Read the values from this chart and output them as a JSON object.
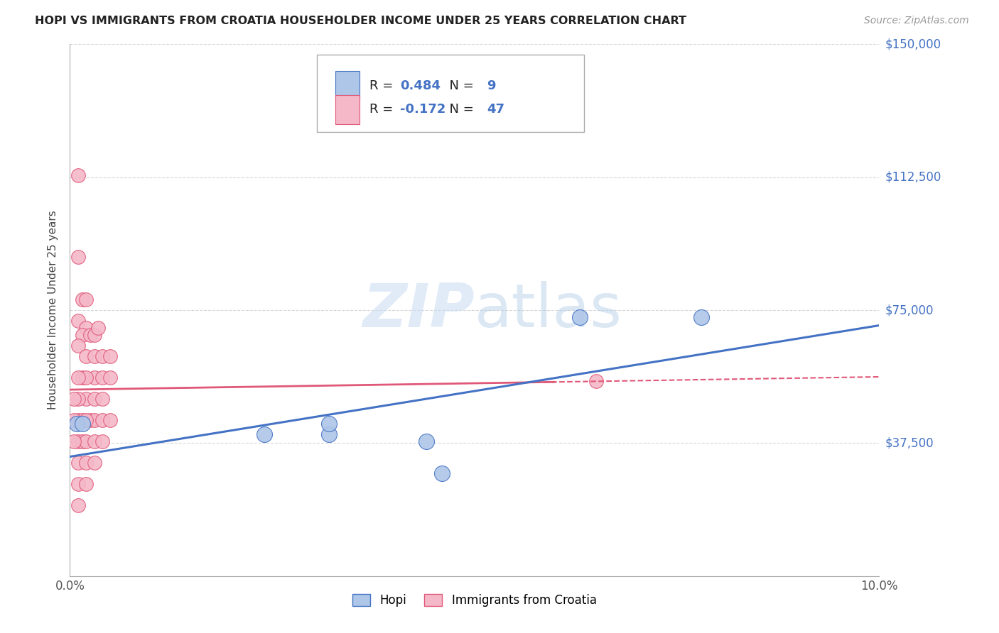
{
  "title": "HOPI VS IMMIGRANTS FROM CROATIA HOUSEHOLDER INCOME UNDER 25 YEARS CORRELATION CHART",
  "source": "Source: ZipAtlas.com",
  "ylabel": "Householder Income Under 25 years",
  "x_min": 0.0,
  "x_max": 0.1,
  "y_min": 0,
  "y_max": 150000,
  "y_ticks": [
    0,
    37500,
    75000,
    112500,
    150000
  ],
  "y_tick_labels": [
    "",
    "$37,500",
    "$75,000",
    "$112,500",
    "$150,000"
  ],
  "hopi_R": 0.484,
  "hopi_N": 9,
  "croatia_R": -0.172,
  "croatia_N": 47,
  "hopi_color": "#aec6e8",
  "hopi_line_color": "#4472c4",
  "croatia_color": "#f4b8c8",
  "croatia_line_color": "#e05878",
  "label_color": "#4472c4",
  "watermark_color": "#c5d9f0",
  "hopi_points": [
    [
      0.0008,
      43000
    ],
    [
      0.0015,
      43000
    ],
    [
      0.032,
      40000
    ],
    [
      0.032,
      43000
    ],
    [
      0.044,
      38000
    ],
    [
      0.046,
      29000
    ],
    [
      0.063,
      73000
    ],
    [
      0.078,
      73000
    ],
    [
      0.024,
      40000
    ]
  ],
  "croatia_points": [
    [
      0.001,
      113000
    ],
    [
      0.001,
      90000
    ],
    [
      0.0015,
      78000
    ],
    [
      0.001,
      72000
    ],
    [
      0.002,
      78000
    ],
    [
      0.002,
      70000
    ],
    [
      0.0015,
      68000
    ],
    [
      0.001,
      65000
    ],
    [
      0.0025,
      68000
    ],
    [
      0.003,
      68000
    ],
    [
      0.0035,
      70000
    ],
    [
      0.002,
      62000
    ],
    [
      0.003,
      62000
    ],
    [
      0.004,
      62000
    ],
    [
      0.005,
      62000
    ],
    [
      0.003,
      56000
    ],
    [
      0.004,
      56000
    ],
    [
      0.005,
      56000
    ],
    [
      0.0015,
      56000
    ],
    [
      0.002,
      56000
    ],
    [
      0.001,
      56000
    ],
    [
      0.002,
      50000
    ],
    [
      0.003,
      50000
    ],
    [
      0.004,
      50000
    ],
    [
      0.0025,
      44000
    ],
    [
      0.003,
      44000
    ],
    [
      0.004,
      44000
    ],
    [
      0.005,
      44000
    ],
    [
      0.001,
      44000
    ],
    [
      0.0015,
      44000
    ],
    [
      0.002,
      44000
    ],
    [
      0.001,
      38000
    ],
    [
      0.0015,
      38000
    ],
    [
      0.002,
      38000
    ],
    [
      0.003,
      38000
    ],
    [
      0.004,
      38000
    ],
    [
      0.001,
      32000
    ],
    [
      0.002,
      32000
    ],
    [
      0.003,
      32000
    ],
    [
      0.001,
      26000
    ],
    [
      0.002,
      26000
    ],
    [
      0.001,
      50000
    ],
    [
      0.0005,
      50000
    ],
    [
      0.0005,
      44000
    ],
    [
      0.0005,
      38000
    ],
    [
      0.065,
      55000
    ],
    [
      0.001,
      20000
    ]
  ]
}
